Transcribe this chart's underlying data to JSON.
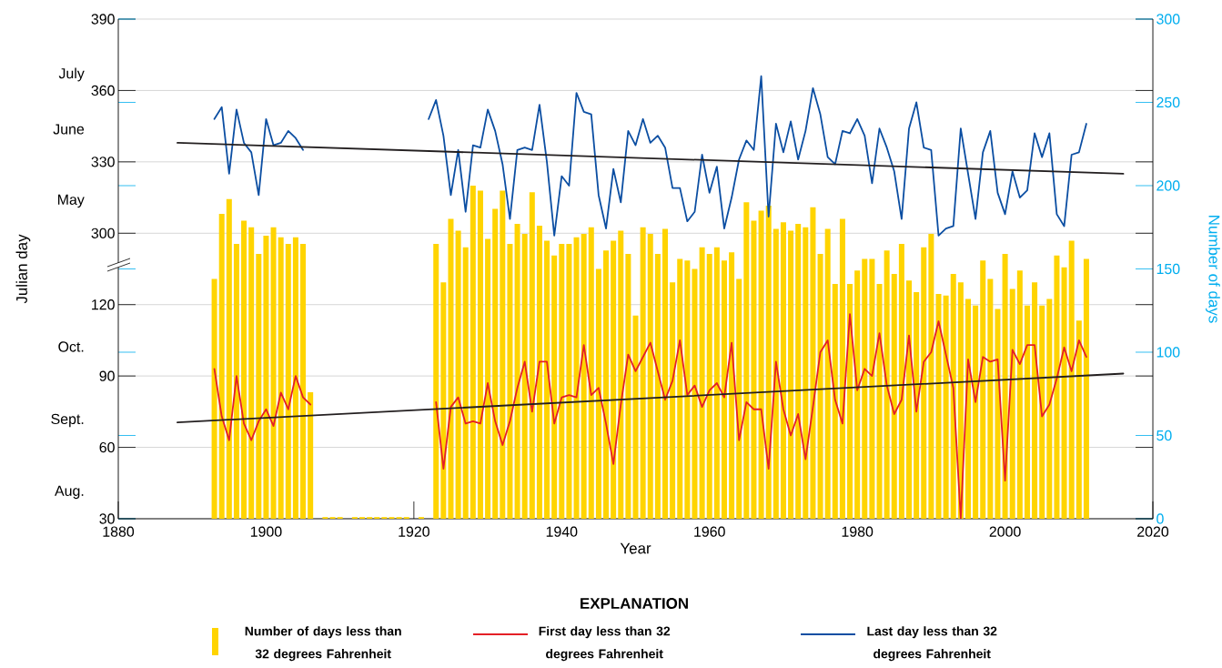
{
  "chart_data": {
    "type": "bar",
    "xlabel": "Year",
    "ylabel": "Julian day",
    "y2label": "Number of days",
    "legend_title": "EXPLANATION",
    "annotations": [
      "July",
      "June",
      "May",
      "Oct.",
      "Sept.",
      "Aug."
    ],
    "xlim": [
      1880,
      2020
    ],
    "xticks": [
      1880,
      1900,
      1920,
      1940,
      1960,
      1980,
      2000,
      2020
    ],
    "ylim": [
      30,
      240
    ],
    "yticks": [
      30,
      60,
      90,
      120
    ],
    "y3lim": [
      180,
      390
    ],
    "y3ticks": [
      300,
      330,
      360,
      390
    ],
    "y2lim": [
      0,
      300
    ],
    "y2ticks": [
      0,
      50,
      100,
      150,
      200,
      250,
      300
    ],
    "grid": "y",
    "legend": "bottom",
    "series": [
      {
        "name": "Number of days less than 32 degrees Fahrenheit",
        "color": "#ffd400",
        "axis": "y2",
        "x": [
          1893,
          1894,
          1895,
          1896,
          1897,
          1898,
          1899,
          1900,
          1901,
          1902,
          1903,
          1904,
          1905,
          1906,
          1908,
          1909,
          1910,
          1912,
          1913,
          1914,
          1915,
          1916,
          1917,
          1918,
          1919,
          1921,
          1923,
          1924,
          1925,
          1926,
          1927,
          1928,
          1929,
          1930,
          1931,
          1932,
          1933,
          1934,
          1935,
          1936,
          1937,
          1938,
          1939,
          1940,
          1941,
          1942,
          1943,
          1944,
          1945,
          1946,
          1947,
          1948,
          1949,
          1950,
          1951,
          1952,
          1953,
          1954,
          1955,
          1956,
          1957,
          1958,
          1959,
          1960,
          1961,
          1962,
          1963,
          1964,
          1965,
          1966,
          1967,
          1968,
          1969,
          1970,
          1971,
          1972,
          1973,
          1974,
          1975,
          1976,
          1977,
          1978,
          1979,
          1980,
          1981,
          1982,
          1983,
          1984,
          1985,
          1986,
          1987,
          1988,
          1989,
          1990,
          1991,
          1992,
          1993,
          1994,
          1995,
          1996,
          1997,
          1998,
          1999,
          2000,
          2001,
          2002,
          2003,
          2004,
          2005,
          2006,
          2007,
          2008,
          2009,
          2010,
          2011
        ],
        "values": [
          144,
          183,
          192,
          165,
          179,
          175,
          159,
          170,
          175,
          169,
          165,
          169,
          165,
          76,
          1,
          1,
          1,
          1,
          1,
          1,
          1,
          1,
          1,
          1,
          1,
          1,
          165,
          142,
          180,
          173,
          163,
          200,
          197,
          168,
          186,
          197,
          165,
          177,
          171,
          196,
          176,
          167,
          158,
          165,
          165,
          169,
          171,
          175,
          150,
          161,
          167,
          173,
          159,
          122,
          175,
          171,
          159,
          174,
          142,
          156,
          155,
          150,
          163,
          159,
          163,
          155,
          160,
          144,
          190,
          179,
          185,
          188,
          174,
          178,
          173,
          177,
          175,
          187,
          159,
          174,
          141,
          180,
          141,
          149,
          156,
          156,
          141,
          161,
          147,
          165,
          143,
          136,
          163,
          171,
          135,
          134,
          147,
          142,
          132,
          128,
          155,
          144,
          126,
          159,
          138,
          149,
          128,
          142,
          128,
          132,
          158,
          151,
          167,
          119,
          156
        ]
      },
      {
        "type": "line",
        "name": "First day less than 32 degrees Fahrenheit",
        "color": "#e41f26",
        "axis": "y",
        "x": [
          1893,
          1894,
          1895,
          1896,
          1897,
          1898,
          1899,
          1900,
          1901,
          1902,
          1903,
          1904,
          1905,
          1906,
          1914,
          1923,
          1924,
          1925,
          1926,
          1927,
          1928,
          1929,
          1930,
          1931,
          1932,
          1933,
          1934,
          1935,
          1936,
          1937,
          1938,
          1939,
          1940,
          1941,
          1942,
          1943,
          1944,
          1945,
          1946,
          1947,
          1948,
          1949,
          1950,
          1951,
          1952,
          1953,
          1954,
          1955,
          1956,
          1957,
          1958,
          1959,
          1960,
          1961,
          1962,
          1963,
          1964,
          1965,
          1966,
          1967,
          1968,
          1969,
          1970,
          1971,
          1972,
          1973,
          1974,
          1975,
          1976,
          1977,
          1978,
          1979,
          1980,
          1981,
          1982,
          1983,
          1984,
          1985,
          1986,
          1987,
          1988,
          1989,
          1990,
          1991,
          1992,
          1993,
          1994,
          1995,
          1996,
          1997,
          1998,
          1999,
          2000,
          2001,
          2002,
          2003,
          2004,
          2005,
          2006,
          2007,
          2008,
          2009,
          2010,
          2011
        ],
        "values": [
          93,
          73,
          63,
          90,
          70,
          63,
          71,
          76,
          69,
          83,
          76,
          90,
          81,
          78,
          null,
          79,
          51,
          77,
          81,
          70,
          71,
          70,
          87,
          71,
          61,
          71,
          85,
          96,
          75,
          96,
          96,
          70,
          81,
          82,
          81,
          103,
          82,
          85,
          70,
          53,
          78,
          99,
          92,
          98,
          104,
          92,
          80,
          88,
          105,
          82,
          86,
          77,
          84,
          87,
          81,
          104,
          63,
          79,
          76,
          76,
          51,
          96,
          76,
          65,
          74,
          55,
          77,
          100,
          105,
          80,
          70,
          116,
          84,
          93,
          90,
          108,
          86,
          74,
          80,
          107,
          75,
          96,
          100,
          113,
          99,
          85,
          30,
          97,
          79,
          98,
          96,
          97,
          46,
          101,
          95,
          103,
          103,
          73,
          78,
          89,
          102,
          92,
          105,
          98
        ]
      },
      {
        "type": "line",
        "name": "Last day less than 32 degrees Fahrenheit",
        "color": "#0b4ea2",
        "axis": "y3",
        "x": [
          1893,
          1894,
          1895,
          1896,
          1897,
          1898,
          1899,
          1900,
          1901,
          1902,
          1903,
          1904,
          1905,
          1914,
          1922,
          1923,
          1924,
          1925,
          1926,
          1927,
          1928,
          1929,
          1930,
          1931,
          1932,
          1933,
          1934,
          1935,
          1936,
          1937,
          1938,
          1939,
          1940,
          1941,
          1942,
          1943,
          1944,
          1945,
          1946,
          1947,
          1948,
          1949,
          1950,
          1951,
          1952,
          1953,
          1954,
          1955,
          1956,
          1957,
          1958,
          1959,
          1960,
          1961,
          1962,
          1963,
          1964,
          1965,
          1966,
          1967,
          1968,
          1969,
          1970,
          1971,
          1972,
          1973,
          1974,
          1975,
          1976,
          1977,
          1978,
          1979,
          1980,
          1981,
          1982,
          1983,
          1984,
          1985,
          1986,
          1987,
          1988,
          1989,
          1990,
          1991,
          1992,
          1993,
          1994,
          1995,
          1996,
          1997,
          1998,
          1999,
          2000,
          2001,
          2002,
          2003,
          2004,
          2005,
          2006,
          2007,
          2008,
          2009,
          2010,
          2011
        ],
        "values": [
          348,
          353,
          325,
          352,
          338,
          334,
          316,
          348,
          337,
          338,
          343,
          340,
          335,
          null,
          348,
          356,
          341,
          316,
          335,
          309,
          337,
          336,
          352,
          343,
          329,
          306,
          335,
          336,
          335,
          354,
          330,
          299,
          324,
          320,
          359,
          351,
          350,
          316,
          302,
          327,
          313,
          343,
          337,
          348,
          338,
          341,
          336,
          319,
          319,
          305,
          309,
          333,
          317,
          328,
          302,
          315,
          331,
          339,
          335,
          366,
          307,
          346,
          334,
          347,
          331,
          343,
          361,
          350,
          332,
          329,
          343,
          342,
          348,
          341,
          321,
          344,
          336,
          326,
          306,
          344,
          355,
          336,
          335,
          299,
          302,
          303,
          344,
          325,
          306,
          334,
          343,
          317,
          308,
          326,
          315,
          318,
          342,
          332,
          342,
          308,
          303,
          333,
          334,
          346
        ]
      },
      {
        "type": "line",
        "color": "#231f20",
        "axis": "y",
        "x": [
          1888,
          2016
        ],
        "values": [
          70.5,
          91
        ]
      },
      {
        "type": "line",
        "color": "#231f20",
        "axis": "y3",
        "x": [
          1888,
          2016
        ],
        "values": [
          338,
          325
        ]
      }
    ]
  }
}
